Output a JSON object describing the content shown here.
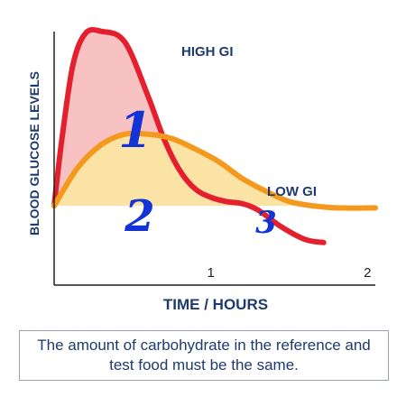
{
  "chart_data": {
    "type": "area",
    "xlabel": "TIME / HOURS",
    "ylabel": "BLOOD GLUCOSE LEVELS",
    "x_ticks": [
      "1",
      "2"
    ],
    "xlim": [
      0,
      2.05
    ],
    "ylim": [
      0,
      10
    ],
    "grid": false,
    "series": [
      {
        "name": "HIGH GI",
        "color": "#e5202e",
        "fill": "#f8c2c3",
        "x": [
          0,
          0.05,
          0.12,
          0.2,
          0.3,
          0.45,
          0.6,
          0.7,
          0.8,
          0.9,
          1.0,
          1.1,
          1.2,
          1.3,
          1.45,
          1.6,
          1.72
        ],
        "y": [
          1.8,
          5.0,
          8.5,
          10.0,
          10.1,
          9.6,
          7.0,
          5.0,
          3.5,
          2.6,
          2.2,
          2.0,
          1.9,
          1.6,
          0.8,
          0.2,
          0.05
        ]
      },
      {
        "name": "LOW GI",
        "color": "#f39a1e",
        "fill": "#fbe3a6",
        "x": [
          0,
          0.15,
          0.3,
          0.45,
          0.6,
          0.75,
          0.9,
          1.05,
          1.2,
          1.35,
          1.5,
          1.65,
          1.8,
          2.05
        ],
        "y": [
          1.8,
          3.6,
          4.7,
          5.2,
          5.2,
          5.0,
          4.5,
          3.9,
          3.1,
          2.5,
          2.0,
          1.8,
          1.7,
          1.7
        ]
      }
    ],
    "area_labels": [
      "1",
      "2",
      "3"
    ]
  },
  "note": "The amount of carbohydrate in the reference and test food must be the same."
}
